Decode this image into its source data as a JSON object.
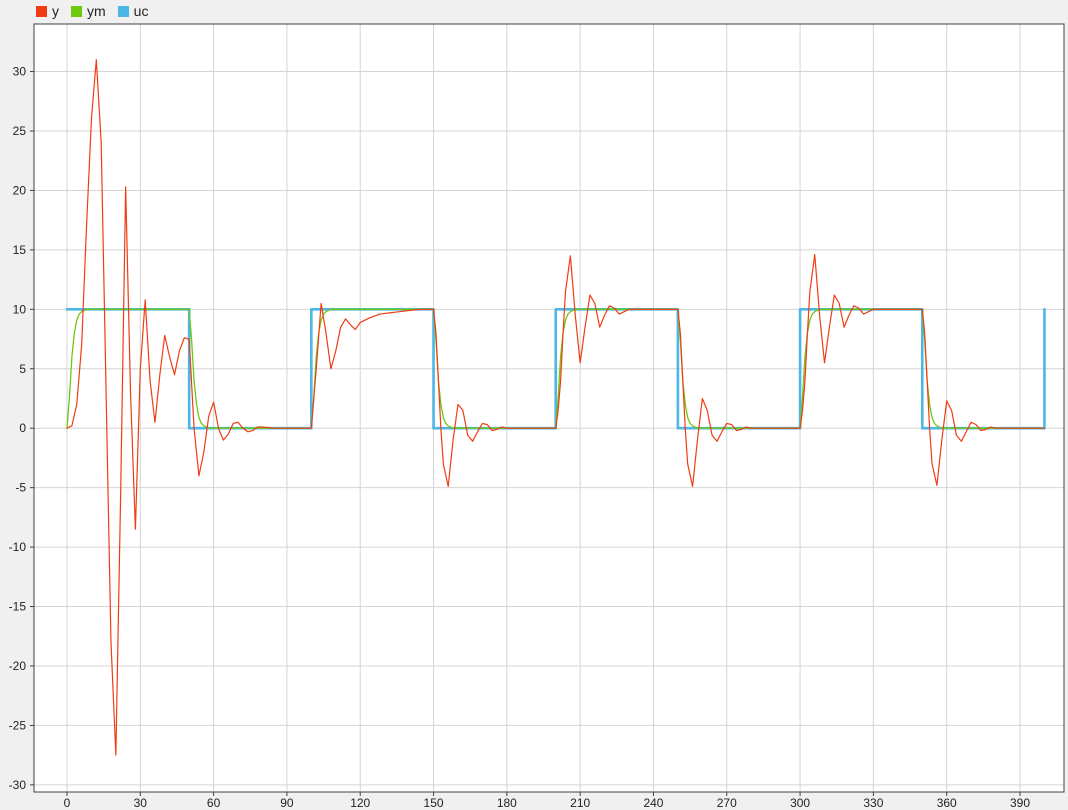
{
  "legend": [
    {
      "label": "y",
      "color": "#f03c14"
    },
    {
      "label": "ym",
      "color": "#6ec80f"
    },
    {
      "label": "uc",
      "color": "#4cb6e6"
    }
  ],
  "colors": {
    "plot_background": "#ffffff",
    "figure_background": "#f0f0f0",
    "grid": "#d4d4d4",
    "axes": "#404040"
  },
  "chart_data": {
    "type": "line",
    "title": "",
    "xlabel": "",
    "ylabel": "",
    "xlim": [
      -13.5,
      408
    ],
    "ylim": [
      -30.6,
      34
    ],
    "xticks": [
      0,
      30,
      60,
      90,
      120,
      150,
      180,
      210,
      240,
      270,
      300,
      330,
      360,
      390
    ],
    "yticks": [
      -30,
      -25,
      -20,
      -15,
      -10,
      -5,
      0,
      5,
      10,
      15,
      20,
      25,
      30
    ],
    "grid": true,
    "legend_position": "top-left",
    "series": [
      {
        "name": "uc",
        "x": [
          0,
          50,
          50,
          100,
          100,
          150,
          150,
          200,
          200,
          250,
          250,
          300,
          300,
          350,
          350,
          400,
          400
        ],
        "y": [
          10,
          10,
          0,
          0,
          10,
          10,
          0,
          0,
          10,
          10,
          0,
          0,
          10,
          10,
          0,
          0,
          10
        ]
      },
      {
        "name": "ym",
        "x": [
          0,
          1,
          2,
          3,
          4,
          5,
          6,
          8,
          10,
          50,
          51,
          52,
          53,
          54,
          55,
          56,
          58,
          60,
          100,
          101,
          102,
          103,
          104,
          105,
          106,
          108,
          110,
          150,
          151,
          152,
          153,
          154,
          155,
          156,
          158,
          160,
          200,
          201,
          202,
          203,
          204,
          205,
          206,
          208,
          210,
          250,
          251,
          252,
          253,
          254,
          255,
          256,
          258,
          260,
          300,
          301,
          302,
          303,
          304,
          305,
          306,
          308,
          310,
          350,
          351,
          352,
          353,
          354,
          355,
          356,
          358,
          360,
          400
        ],
        "y": [
          0,
          2.6,
          6.0,
          8.0,
          9.1,
          9.6,
          9.8,
          10,
          10,
          10,
          7.4,
          4.0,
          2.0,
          0.9,
          0.4,
          0.2,
          0,
          0,
          0,
          2.6,
          6.0,
          8.0,
          9.1,
          9.6,
          9.8,
          10,
          10,
          10,
          7.4,
          4.0,
          2.0,
          0.9,
          0.4,
          0.2,
          0,
          0,
          0,
          2.6,
          6.0,
          8.0,
          9.1,
          9.6,
          9.8,
          10,
          10,
          10,
          7.4,
          4.0,
          2.0,
          0.9,
          0.4,
          0.2,
          0,
          0,
          0,
          2.6,
          6.0,
          8.0,
          9.1,
          9.6,
          9.8,
          10,
          10,
          10,
          7.4,
          4.0,
          2.0,
          0.9,
          0.4,
          0.2,
          0,
          0,
          0
        ]
      },
      {
        "name": "y",
        "x": [
          0,
          2,
          4,
          6,
          8,
          10,
          12,
          14,
          16,
          18,
          20,
          22,
          24,
          26,
          28,
          30,
          32,
          34,
          36,
          38,
          40,
          42,
          44,
          46,
          48,
          50,
          52,
          54,
          56,
          58,
          60,
          62,
          64,
          66,
          68,
          70,
          72,
          74,
          76,
          78,
          80,
          85,
          90,
          100,
          102,
          104,
          106,
          108,
          110,
          112,
          114,
          116,
          118,
          120,
          124,
          128,
          132,
          136,
          140,
          145,
          150,
          151,
          152,
          153,
          154,
          156,
          158,
          160,
          162,
          164,
          166,
          168,
          170,
          172,
          174,
          176,
          178,
          180,
          185,
          200,
          201,
          202,
          203,
          204,
          206,
          208,
          210,
          212,
          214,
          216,
          218,
          220,
          222,
          224,
          226,
          228,
          230,
          235,
          240,
          250,
          251,
          252,
          253,
          254,
          256,
          258,
          260,
          262,
          264,
          266,
          268,
          270,
          272,
          274,
          276,
          278,
          280,
          285,
          300,
          301,
          302,
          303,
          304,
          306,
          308,
          310,
          312,
          314,
          316,
          318,
          320,
          322,
          324,
          326,
          328,
          330,
          335,
          340,
          350,
          351,
          352,
          353,
          354,
          356,
          358,
          360,
          362,
          364,
          366,
          368,
          370,
          372,
          374,
          376,
          378,
          380,
          385,
          400
        ],
        "y": [
          0,
          0.2,
          2,
          7,
          17,
          26,
          31,
          24,
          3,
          -18,
          -27.5,
          -5,
          20.3,
          3,
          -8.5,
          5,
          10.8,
          4,
          0.5,
          4.5,
          7.8,
          6,
          4.5,
          6.5,
          7.6,
          7.5,
          0,
          -4,
          -2,
          1,
          2.2,
          0,
          -1,
          -0.5,
          0.4,
          0.5,
          0,
          -0.3,
          -0.2,
          0.1,
          0.1,
          0,
          0,
          0,
          5,
          10.5,
          8,
          5,
          6.5,
          8.5,
          9.2,
          8.7,
          8.3,
          8.9,
          9.3,
          9.6,
          9.7,
          9.8,
          9.9,
          10,
          10,
          8,
          4,
          0,
          -3,
          -4.9,
          -1,
          2,
          1.5,
          -0.6,
          -1.1,
          -0.3,
          0.4,
          0.3,
          -0.2,
          -0.1,
          0.1,
          0,
          0,
          0,
          1.5,
          4,
          8,
          11.5,
          14.5,
          9.5,
          5.5,
          8.5,
          11.2,
          10.5,
          8.5,
          9.5,
          10.3,
          10.1,
          9.6,
          9.8,
          10,
          10,
          10,
          10,
          8,
          4,
          0,
          -3,
          -4.9,
          -1,
          2.5,
          1.5,
          -0.6,
          -1.1,
          -0.3,
          0.4,
          0.3,
          -0.2,
          -0.1,
          0.1,
          0,
          0,
          0,
          1.5,
          4,
          8,
          11.5,
          14.6,
          9.5,
          5.5,
          8.5,
          11.2,
          10.5,
          8.5,
          9.5,
          10.3,
          10.1,
          9.6,
          9.8,
          10,
          10,
          10,
          10,
          8,
          4,
          0,
          -3,
          -4.8,
          -1,
          2.3,
          1.5,
          -0.6,
          -1.1,
          -0.3,
          0.5,
          0.3,
          -0.2,
          -0.1,
          0.1,
          0,
          0,
          0
        ]
      }
    ]
  }
}
